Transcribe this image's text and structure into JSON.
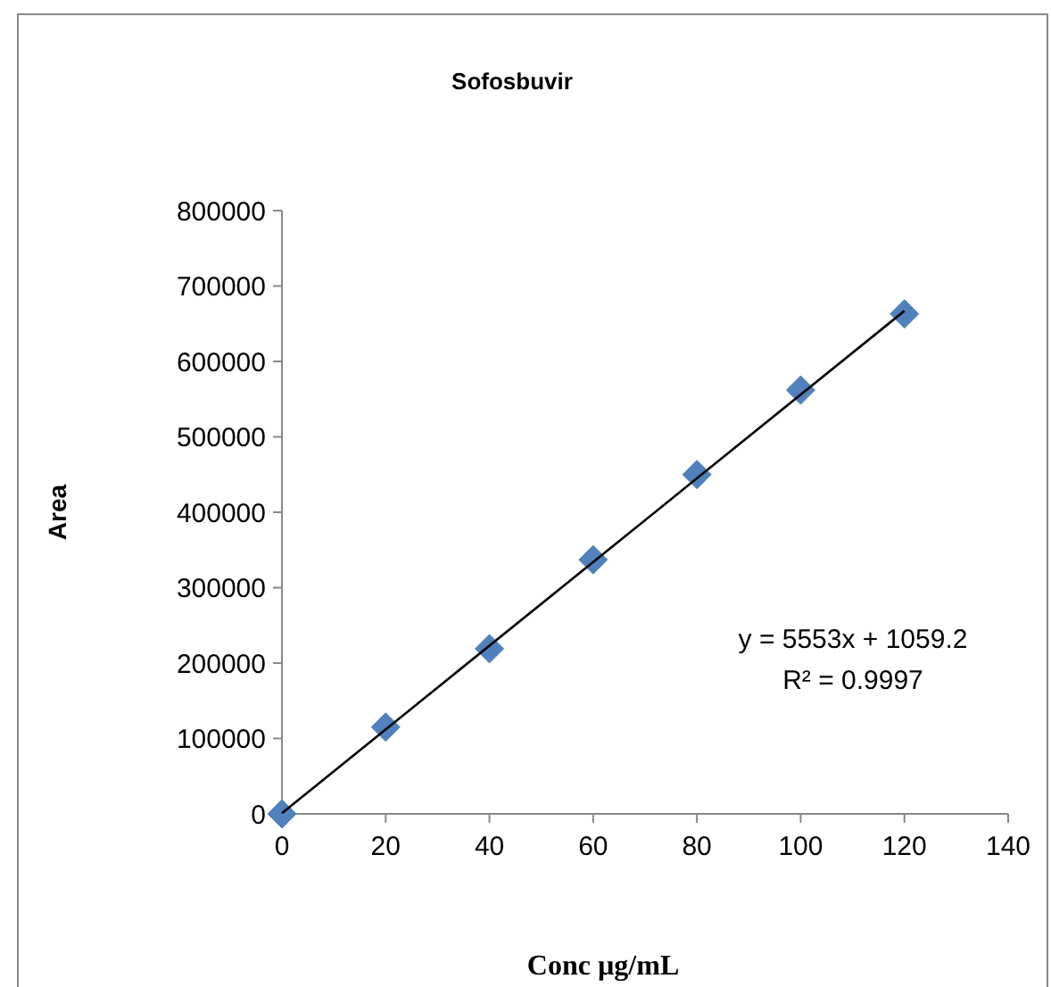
{
  "chart_data": {
    "type": "scatter",
    "title": "Sofosbuvir",
    "xlabel": "Conc µg/mL",
    "ylabel": "Area",
    "x": [
      0,
      20,
      40,
      60,
      80,
      100,
      120
    ],
    "series": [
      {
        "color": "#4f81bd",
        "marker": "diamond",
        "values": [
          0,
          115000,
          219000,
          337000,
          450000,
          562000,
          663000
        ]
      },
      {
        "type": "line",
        "color": "#000000",
        "x": [
          0,
          120
        ],
        "values": [
          1000,
          667000
        ]
      }
    ],
    "xlim": [
      0,
      140
    ],
    "xticks": [
      0,
      20,
      40,
      60,
      80,
      100,
      120,
      140
    ],
    "ylim": [
      0,
      800000
    ],
    "yticks": [
      0,
      100000,
      200000,
      300000,
      400000,
      500000,
      600000,
      700000,
      800000
    ],
    "annotations": [
      "y = 5553x + 1059.2",
      "R² = 0.9997"
    ],
    "grid": false
  }
}
